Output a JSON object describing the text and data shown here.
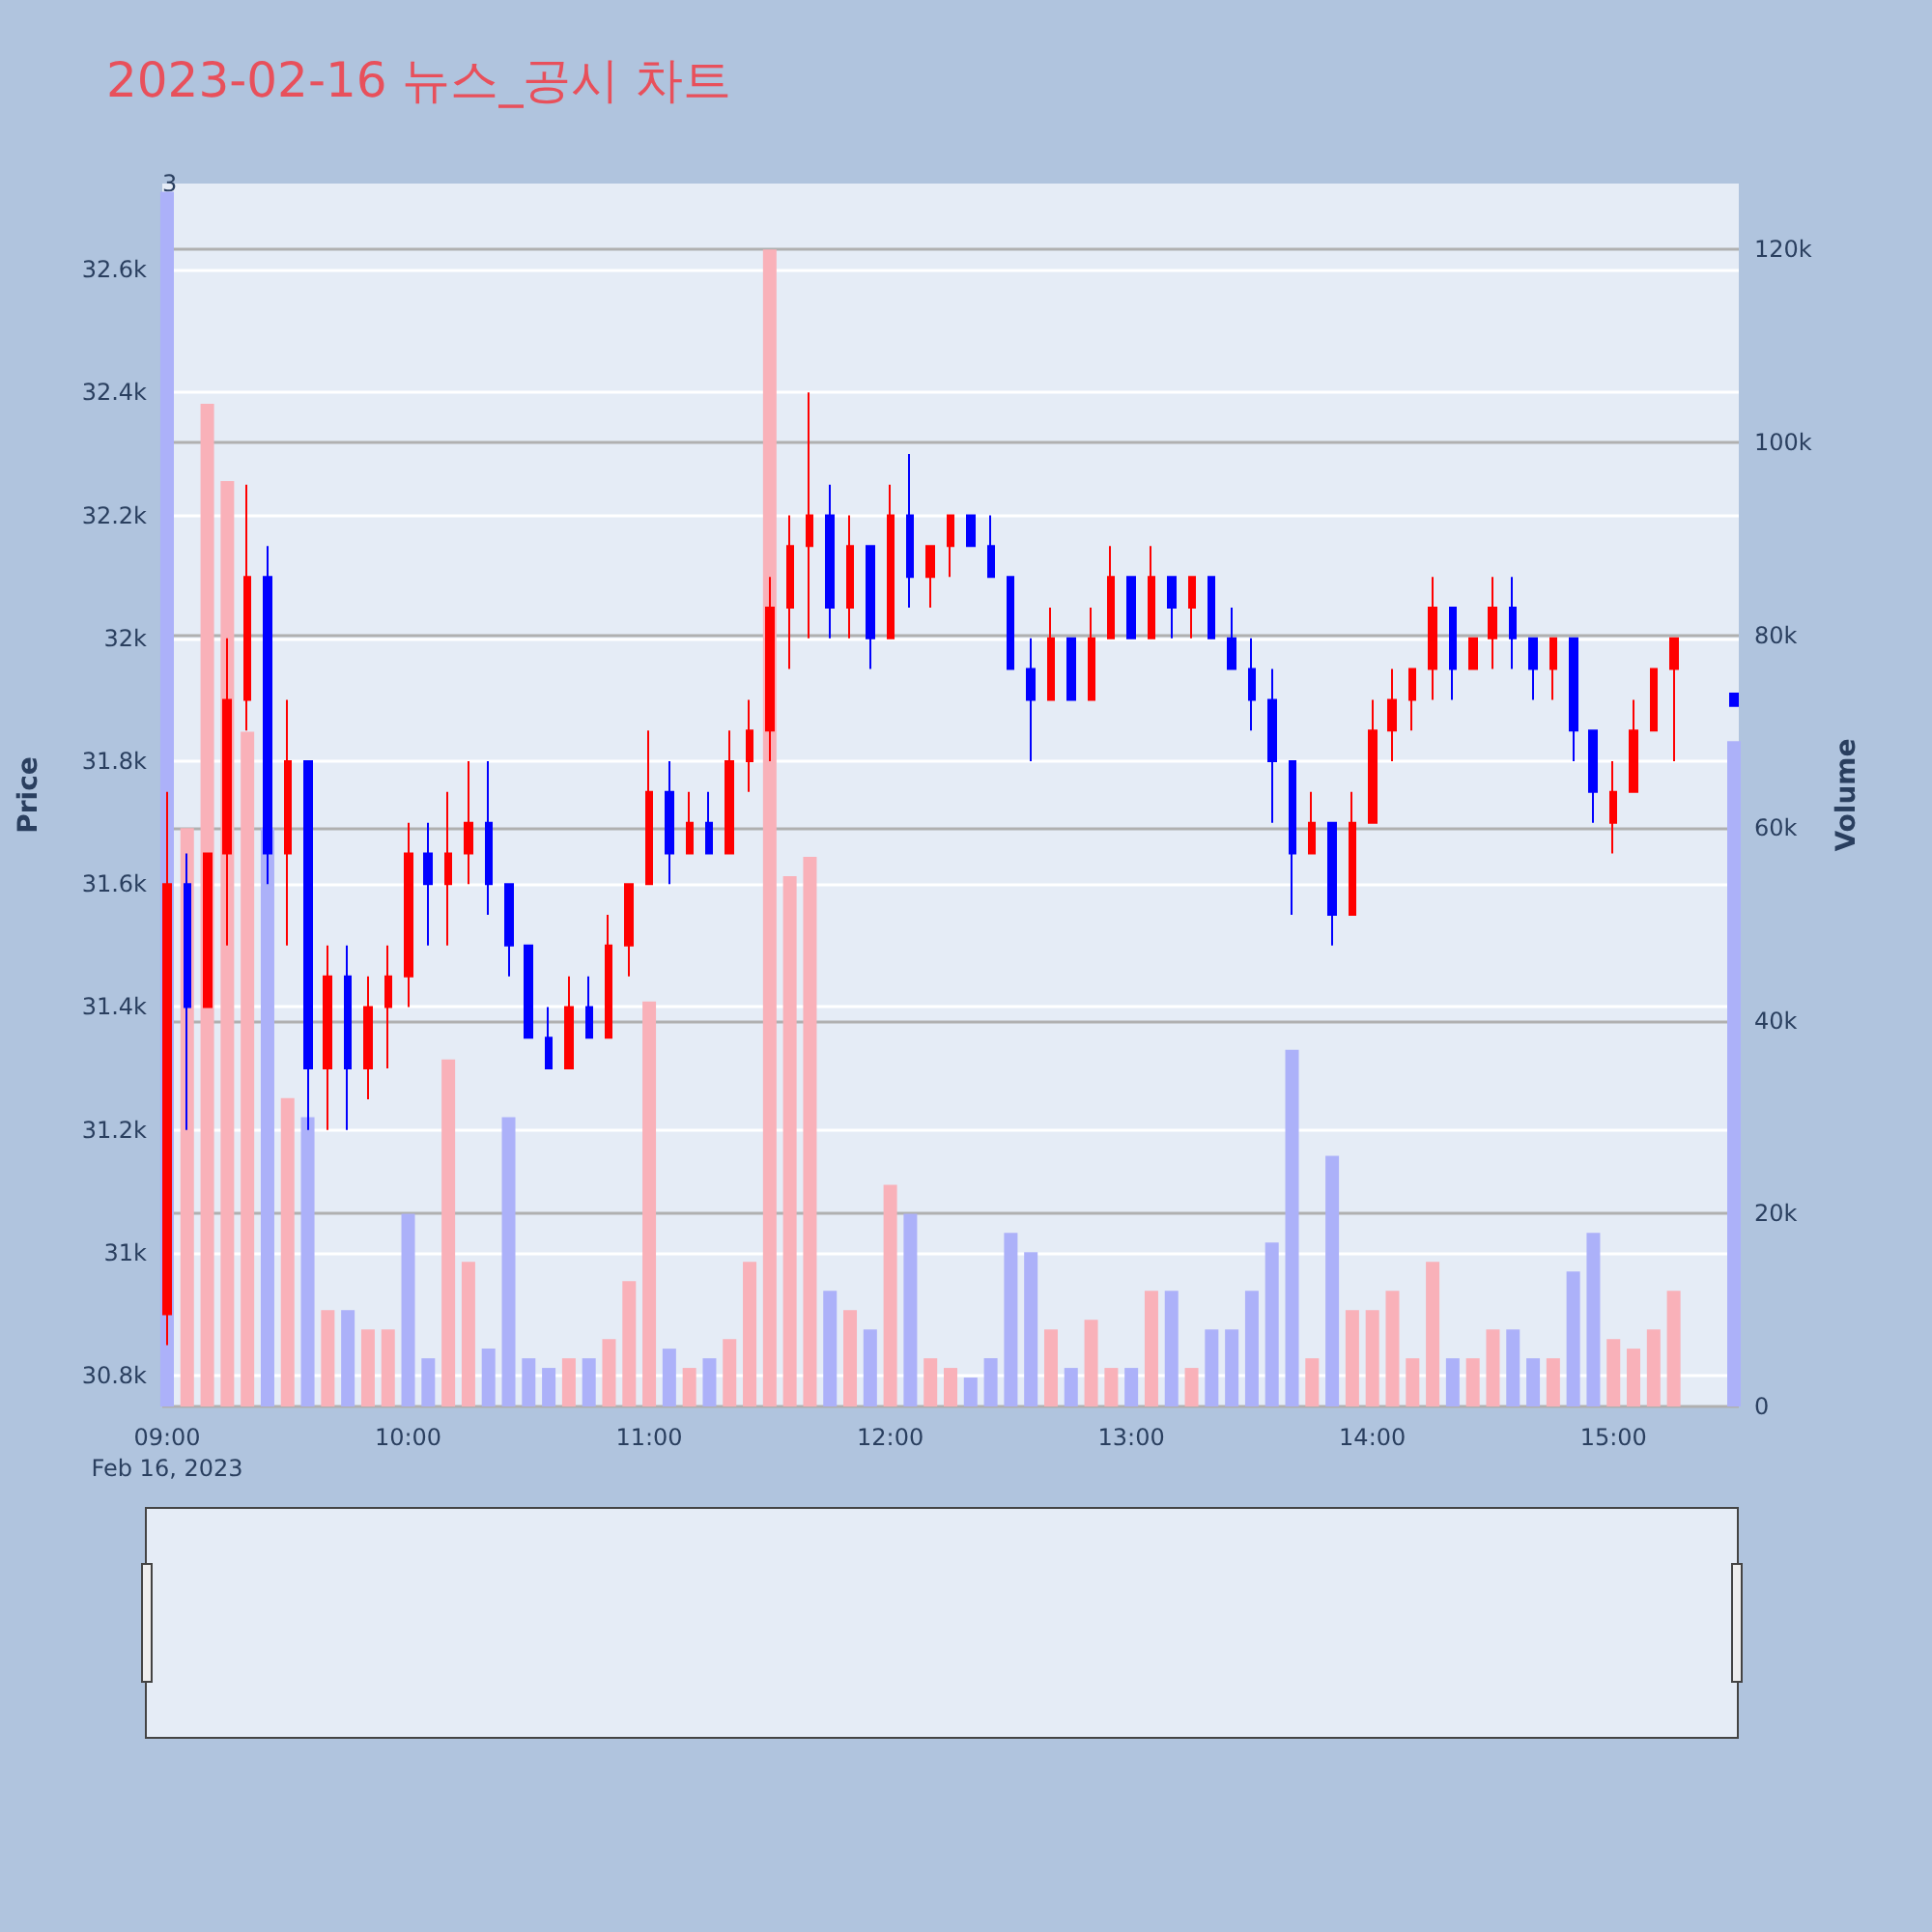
{
  "chart_data": {
    "type": "candlestick",
    "title": "2023-02-16 뉴스_공시 차트",
    "ylabel": "Price",
    "y2label": "Volume",
    "annotations": [
      "3"
    ],
    "x": [
      9,
      9.0833,
      9.1667,
      9.25,
      9.3333,
      9.4167,
      9.5,
      9.5833,
      9.6667,
      9.75,
      9.8333,
      9.9167,
      10,
      10.0833,
      10.1667,
      10.25,
      10.3333,
      10.4167,
      10.5,
      10.5833,
      10.6667,
      10.75,
      10.8333,
      10.9167,
      11,
      11.0833,
      11.1667,
      11.25,
      11.3333,
      11.4167,
      11.5,
      11.5833,
      11.6667,
      11.75,
      11.8333,
      11.9167,
      12,
      12.0833,
      12.1667,
      12.25,
      12.3333,
      12.4167,
      12.5,
      12.5833,
      12.6667,
      12.75,
      12.8333,
      12.9167,
      13,
      13.0833,
      13.1667,
      13.25,
      13.3333,
      13.4167,
      13.5,
      13.5833,
      13.6667,
      13.75,
      13.8333,
      13.9167,
      14,
      14.0833,
      14.1667,
      14.25,
      14.3333,
      14.4167,
      14.5,
      14.5833,
      14.6667,
      14.75,
      14.8333,
      14.9167,
      15,
      15.0833,
      15.1667,
      15.25,
      15.5
    ],
    "ohlc": [
      [
        30900,
        31750,
        30850,
        31600
      ],
      [
        31600,
        31650,
        31200,
        31400
      ],
      [
        31400,
        31650,
        31400,
        31650
      ],
      [
        31650,
        32000,
        31500,
        31900
      ],
      [
        31900,
        32250,
        31850,
        32100
      ],
      [
        32100,
        32150,
        31600,
        31650
      ],
      [
        31650,
        31900,
        31500,
        31800
      ],
      [
        31800,
        31800,
        31200,
        31300
      ],
      [
        31300,
        31500,
        31200,
        31450
      ],
      [
        31450,
        31500,
        31200,
        31300
      ],
      [
        31300,
        31450,
        31250,
        31400
      ],
      [
        31400,
        31500,
        31300,
        31450
      ],
      [
        31450,
        31700,
        31400,
        31650
      ],
      [
        31650,
        31700,
        31500,
        31600
      ],
      [
        31600,
        31750,
        31500,
        31650
      ],
      [
        31650,
        31800,
        31600,
        31700
      ],
      [
        31700,
        31800,
        31550,
        31600
      ],
      [
        31600,
        31600,
        31450,
        31500
      ],
      [
        31500,
        31500,
        31350,
        31350
      ],
      [
        31350,
        31400,
        31300,
        31300
      ],
      [
        31300,
        31450,
        31300,
        31400
      ],
      [
        31400,
        31450,
        31350,
        31350
      ],
      [
        31350,
        31550,
        31350,
        31500
      ],
      [
        31500,
        31600,
        31450,
        31600
      ],
      [
        31600,
        31850,
        31600,
        31750
      ],
      [
        31750,
        31800,
        31600,
        31650
      ],
      [
        31650,
        31750,
        31650,
        31700
      ],
      [
        31700,
        31750,
        31650,
        31650
      ],
      [
        31650,
        31850,
        31650,
        31800
      ],
      [
        31800,
        31900,
        31750,
        31850
      ],
      [
        31850,
        32100,
        31800,
        32050
      ],
      [
        32050,
        32200,
        31950,
        32150
      ],
      [
        32150,
        32400,
        32000,
        32200
      ],
      [
        32200,
        32250,
        32000,
        32050
      ],
      [
        32050,
        32200,
        32000,
        32150
      ],
      [
        32150,
        32150,
        31950,
        32000
      ],
      [
        32000,
        32250,
        32000,
        32200
      ],
      [
        32200,
        32300,
        32050,
        32100
      ],
      [
        32100,
        32150,
        32050,
        32150
      ],
      [
        32150,
        32200,
        32100,
        32200
      ],
      [
        32200,
        32200,
        32150,
        32150
      ],
      [
        32150,
        32200,
        32100,
        32100
      ],
      [
        32100,
        32100,
        31950,
        31950
      ],
      [
        31950,
        32000,
        31800,
        31900
      ],
      [
        31900,
        32050,
        31900,
        32000
      ],
      [
        32000,
        32000,
        31900,
        31900
      ],
      [
        31900,
        32050,
        31900,
        32000
      ],
      [
        32000,
        32150,
        32000,
        32100
      ],
      [
        32100,
        32100,
        32000,
        32000
      ],
      [
        32000,
        32150,
        32000,
        32100
      ],
      [
        32100,
        32100,
        32000,
        32050
      ],
      [
        32050,
        32100,
        32000,
        32100
      ],
      [
        32100,
        32100,
        32000,
        32000
      ],
      [
        32000,
        32050,
        31950,
        31950
      ],
      [
        31950,
        32000,
        31850,
        31900
      ],
      [
        31900,
        31950,
        31700,
        31800
      ],
      [
        31800,
        31800,
        31550,
        31650
      ],
      [
        31650,
        31750,
        31650,
        31700
      ],
      [
        31700,
        31700,
        31500,
        31550
      ],
      [
        31550,
        31750,
        31550,
        31700
      ],
      [
        31700,
        31900,
        31700,
        31850
      ],
      [
        31850,
        31950,
        31800,
        31900
      ],
      [
        31900,
        31950,
        31850,
        31950
      ],
      [
        31950,
        32100,
        31900,
        32050
      ],
      [
        32050,
        32050,
        31900,
        31950
      ],
      [
        31950,
        32000,
        31950,
        32000
      ],
      [
        32000,
        32100,
        31950,
        32050
      ],
      [
        32050,
        32100,
        31950,
        32000
      ],
      [
        32000,
        32000,
        31900,
        31950
      ],
      [
        31950,
        32000,
        31900,
        32000
      ],
      [
        32000,
        32000,
        31800,
        31850
      ],
      [
        31850,
        31850,
        31700,
        31750
      ],
      [
        31700,
        31800,
        31650,
        31750
      ],
      [
        31750,
        31900,
        31750,
        31850
      ],
      [
        31850,
        31950,
        31850,
        31950
      ],
      [
        31950,
        32000,
        31800,
        32000
      ],
      [
        31910,
        31910,
        31890,
        31890
      ]
    ],
    "colors": [
      "#ff0000",
      "#0000ff",
      "#ff0000",
      "#ff0000",
      "#ff0000",
      "#0000ff",
      "#ff0000",
      "#0000ff",
      "#ff0000",
      "#0000ff",
      "#ff0000",
      "#ff0000",
      "#ff0000",
      "#0000ff",
      "#ff0000",
      "#ff0000",
      "#0000ff",
      "#0000ff",
      "#0000ff",
      "#0000ff",
      "#ff0000",
      "#0000ff",
      "#ff0000",
      "#ff0000",
      "#ff0000",
      "#0000ff",
      "#ff0000",
      "#0000ff",
      "#ff0000",
      "#ff0000",
      "#ff0000",
      "#ff0000",
      "#ff0000",
      "#0000ff",
      "#ff0000",
      "#0000ff",
      "#ff0000",
      "#0000ff",
      "#ff0000",
      "#ff0000",
      "#0000ff",
      "#0000ff",
      "#0000ff",
      "#0000ff",
      "#ff0000",
      "#0000ff",
      "#ff0000",
      "#ff0000",
      "#0000ff",
      "#ff0000",
      "#0000ff",
      "#ff0000",
      "#0000ff",
      "#0000ff",
      "#0000ff",
      "#0000ff",
      "#0000ff",
      "#ff0000",
      "#0000ff",
      "#ff0000",
      "#ff0000",
      "#ff0000",
      "#ff0000",
      "#ff0000",
      "#0000ff",
      "#ff0000",
      "#ff0000",
      "#0000ff",
      "#0000ff",
      "#ff0000",
      "#0000ff",
      "#0000ff",
      "#ff0000",
      "#ff0000",
      "#ff0000",
      "#ff0000",
      "#0000ff"
    ],
    "series": [
      {
        "type": "bar",
        "axis": "y2",
        "x": [
          9,
          9.0833,
          9.1667,
          9.25,
          9.3333,
          9.4167,
          9.5,
          9.5833,
          9.6667,
          9.75,
          9.8333,
          9.9167,
          10,
          10.0833,
          10.1667,
          10.25,
          10.3333,
          10.4167,
          10.5,
          10.5833,
          10.6667,
          10.75,
          10.8333,
          10.9167,
          11,
          11.0833,
          11.1667,
          11.25,
          11.3333,
          11.4167,
          11.5,
          11.5833,
          11.6667,
          11.75,
          11.8333,
          11.9167,
          12,
          12.0833,
          12.1667,
          12.25,
          12.3333,
          12.4167,
          12.5,
          12.5833,
          12.6667,
          12.75,
          12.8333,
          12.9167,
          13,
          13.0833,
          13.1667,
          13.25,
          13.3333,
          13.4167,
          13.5,
          13.5833,
          13.6667,
          13.75,
          13.8333,
          13.9167,
          14,
          14.0833,
          14.1667,
          14.25,
          14.3333,
          14.4167,
          14.5,
          14.5833,
          14.6667,
          14.75,
          14.8333,
          14.9167,
          15,
          15.0833,
          15.1667,
          15.25,
          15.5
        ],
        "values": [
          126000,
          60000,
          104000,
          96000,
          70000,
          60000,
          32000,
          30000,
          10000,
          10000,
          8000,
          8000,
          20000,
          5000,
          36000,
          15000,
          6000,
          30000,
          5000,
          4000,
          5000,
          5000,
          7000,
          13000,
          42000,
          6000,
          4000,
          5000,
          7000,
          15000,
          120000,
          55000,
          57000,
          12000,
          10000,
          8000,
          23000,
          20000,
          5000,
          4000,
          3000,
          5000,
          18000,
          16000,
          8000,
          4000,
          9000,
          4000,
          4000,
          12000,
          12000,
          4000,
          8000,
          8000,
          12000,
          17000,
          37000,
          5000,
          26000,
          10000,
          10000,
          12000,
          5000,
          15000,
          5000,
          5000,
          8000,
          8000,
          5000,
          5000,
          14000,
          18000,
          7000,
          6000,
          8000,
          12000,
          69000
        ],
        "colors": [
          "#acb1f9",
          "#f9b1b9",
          "#f9b1b9",
          "#f9b1b9",
          "#f9b1b9",
          "#acb1f9",
          "#f9b1b9",
          "#acb1f9",
          "#f9b1b9",
          "#acb1f9",
          "#f9b1b9",
          "#f9b1b9",
          "#acb1f9",
          "#acb1f9",
          "#f9b1b9",
          "#f9b1b9",
          "#acb1f9",
          "#acb1f9",
          "#acb1f9",
          "#acb1f9",
          "#f9b1b9",
          "#acb1f9",
          "#f9b1b9",
          "#f9b1b9",
          "#f9b1b9",
          "#acb1f9",
          "#f9b1b9",
          "#acb1f9",
          "#f9b1b9",
          "#f9b1b9",
          "#f9b1b9",
          "#f9b1b9",
          "#f9b1b9",
          "#acb1f9",
          "#f9b1b9",
          "#acb1f9",
          "#f9b1b9",
          "#acb1f9",
          "#f9b1b9",
          "#f9b1b9",
          "#acb1f9",
          "#acb1f9",
          "#acb1f9",
          "#acb1f9",
          "#f9b1b9",
          "#acb1f9",
          "#f9b1b9",
          "#f9b1b9",
          "#acb1f9",
          "#f9b1b9",
          "#acb1f9",
          "#f9b1b9",
          "#acb1f9",
          "#acb1f9",
          "#acb1f9",
          "#acb1f9",
          "#acb1f9",
          "#f9b1b9",
          "#acb1f9",
          "#f9b1b9",
          "#f9b1b9",
          "#f9b1b9",
          "#f9b1b9",
          "#f9b1b9",
          "#acb1f9",
          "#f9b1b9",
          "#f9b1b9",
          "#acb1f9",
          "#acb1f9",
          "#f9b1b9",
          "#acb1f9",
          "#acb1f9",
          "#f9b1b9",
          "#f9b1b9",
          "#f9b1b9",
          "#f9b1b9",
          "#acb1f9"
        ]
      }
    ],
    "xlim": [
      8.98,
      15.52
    ],
    "xticks": [
      {
        "value": 9,
        "label": "09:00\nFeb 16, 2023"
      },
      {
        "value": 10,
        "label": "10:00"
      },
      {
        "value": 11,
        "label": "11:00"
      },
      {
        "value": 12,
        "label": "12:00"
      },
      {
        "value": 13,
        "label": "13:00"
      },
      {
        "value": 14,
        "label": "14:00"
      },
      {
        "value": 15,
        "label": "15:00"
      }
    ],
    "ylim": [
      30750,
      32740
    ],
    "yticks": [
      {
        "value": 30800,
        "label": "30.8k"
      },
      {
        "value": 31000,
        "label": "31k"
      },
      {
        "value": 31200,
        "label": "31.2k"
      },
      {
        "value": 31400,
        "label": "31.4k"
      },
      {
        "value": 31600,
        "label": "31.6k"
      },
      {
        "value": 31800,
        "label": "31.8k"
      },
      {
        "value": 32000,
        "label": "32k"
      },
      {
        "value": 32200,
        "label": "32.2k"
      },
      {
        "value": 32400,
        "label": "32.4k"
      },
      {
        "value": 32600,
        "label": "32.6k"
      }
    ],
    "y2lim": [
      0,
      126850
    ],
    "y2ticks": [
      0,
      {
        "value": 20000,
        "label": "20k"
      },
      {
        "value": 40000,
        "label": "40k"
      },
      {
        "value": 60000,
        "label": "60k"
      },
      {
        "value": 80000,
        "label": "80k"
      },
      {
        "value": 100000,
        "label": "100k"
      },
      {
        "value": 120000,
        "label": "120k"
      }
    ],
    "grid": "y"
  }
}
